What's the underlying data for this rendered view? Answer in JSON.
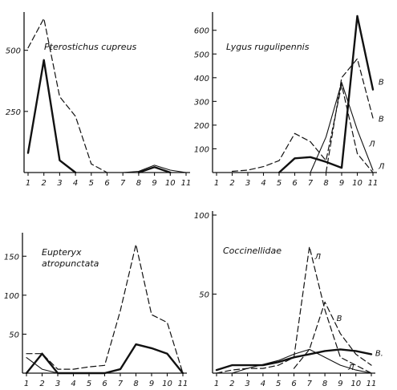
{
  "chart_data": [
    {
      "type": "line",
      "title": "Pterostichus cupreus",
      "title_lines": [
        "Pterostichus cupreus"
      ],
      "x": [
        1,
        2,
        3,
        4,
        5,
        6,
        7,
        8,
        9,
        10,
        11
      ],
      "ylim": [
        0,
        640
      ],
      "yticks": [
        250,
        500
      ],
      "series": [
        {
          "style": "dashed",
          "points": [
            [
              1,
              510
            ],
            [
              2,
              630
            ],
            [
              3,
              310
            ],
            [
              4,
              230
            ],
            [
              5,
              35
            ],
            [
              6,
              0
            ]
          ]
        },
        {
          "style": "solid",
          "points": [
            [
              1,
              80
            ],
            [
              2,
              460
            ],
            [
              3,
              50
            ],
            [
              4,
              0
            ]
          ]
        },
        {
          "style": "solid-thin",
          "points": [
            [
              7,
              0
            ],
            [
              8,
              5
            ],
            [
              9,
              30
            ],
            [
              10,
              10
            ],
            [
              11,
              0
            ]
          ]
        },
        {
          "style": "solid",
          "points": [
            [
              8,
              0
            ],
            [
              9,
              22
            ],
            [
              10,
              0
            ]
          ]
        }
      ],
      "series_labels": []
    },
    {
      "type": "line",
      "title": "Lygus rugulipennis",
      "title_lines": [
        "Lygus rugulipennis"
      ],
      "x": [
        1,
        2,
        3,
        4,
        5,
        6,
        7,
        8,
        9,
        10,
        11
      ],
      "ylim": [
        0,
        660
      ],
      "yticks": [
        100,
        200,
        300,
        400,
        500,
        600
      ],
      "series": [
        {
          "style": "dashed",
          "points": [
            [
              2,
              5
            ],
            [
              3,
              10
            ],
            [
              4,
              25
            ],
            [
              5,
              50
            ],
            [
              6,
              165
            ],
            [
              7,
              130
            ],
            [
              8,
              50
            ],
            [
              9,
              370
            ],
            [
              10,
              80
            ],
            [
              11,
              0
            ]
          ]
        },
        {
          "style": "solid",
          "points": [
            [
              5,
              0
            ],
            [
              6,
              60
            ],
            [
              7,
              65
            ],
            [
              8,
              45
            ],
            [
              9,
              20
            ],
            [
              10,
              660
            ],
            [
              11,
              350
            ]
          ]
        },
        {
          "style": "dashed",
          "points": [
            [
              8,
              0
            ],
            [
              9,
              400
            ],
            [
              10,
              480
            ],
            [
              11,
              230
            ]
          ]
        },
        {
          "style": "solid-thin",
          "points": [
            [
              7,
              0
            ],
            [
              8,
              150
            ],
            [
              9,
              380
            ],
            [
              10,
              180
            ],
            [
              11,
              10
            ]
          ]
        }
      ],
      "series_labels": [
        {
          "text": "В",
          "x": 11.35,
          "y": 370
        },
        {
          "text": "В",
          "x": 11.35,
          "y": 215
        },
        {
          "text": "Л",
          "x": 10.75,
          "y": 110
        },
        {
          "text": "Л",
          "x": 11.35,
          "y": 15
        }
      ]
    },
    {
      "type": "line",
      "title": "Eupteryx atropunctata",
      "title_lines": [
        "Eupteryx",
        "atropunctata"
      ],
      "x": [
        1,
        2,
        3,
        4,
        5,
        6,
        7,
        8,
        9,
        10,
        11
      ],
      "ylim": [
        0,
        175
      ],
      "yticks": [
        50,
        100,
        150
      ],
      "series": [
        {
          "style": "dashed",
          "points": [
            [
              1,
              25
            ],
            [
              2,
              25
            ],
            [
              3,
              5
            ],
            [
              4,
              5
            ],
            [
              5,
              8
            ],
            [
              6,
              10
            ],
            [
              7,
              80
            ],
            [
              8,
              165
            ],
            [
              9,
              75
            ],
            [
              10,
              65
            ],
            [
              11,
              0
            ]
          ]
        },
        {
          "style": "solid",
          "points": [
            [
              1,
              0
            ],
            [
              2,
              25
            ],
            [
              3,
              0
            ],
            [
              4,
              0
            ],
            [
              5,
              0
            ],
            [
              6,
              0
            ],
            [
              7,
              5
            ],
            [
              8,
              37
            ],
            [
              9,
              32
            ],
            [
              10,
              25
            ],
            [
              11,
              0
            ]
          ]
        },
        {
          "style": "solid-thin",
          "points": [
            [
              1,
              20
            ],
            [
              2,
              5
            ],
            [
              3,
              0
            ]
          ]
        }
      ],
      "series_labels": []
    },
    {
      "type": "line",
      "title": "Coccinellidae",
      "title_lines": [
        "Coccinellidae"
      ],
      "x": [
        1,
        2,
        3,
        4,
        5,
        6,
        7,
        8,
        9,
        10,
        11
      ],
      "ylim": [
        0,
        100
      ],
      "yticks": [
        50,
        100
      ],
      "series": [
        {
          "style": "dashed",
          "points": [
            [
              1,
              0
            ],
            [
              2,
              2
            ],
            [
              3,
              3
            ],
            [
              4,
              3
            ],
            [
              5,
              5
            ],
            [
              6,
              10
            ],
            [
              7,
              80
            ],
            [
              8,
              40
            ],
            [
              9,
              10
            ],
            [
              10,
              5
            ],
            [
              11,
              0
            ]
          ]
        },
        {
          "style": "dashed",
          "points": [
            [
              6,
              3
            ],
            [
              7,
              15
            ],
            [
              8,
              45
            ],
            [
              9,
              25
            ],
            [
              10,
              12
            ],
            [
              11,
              5
            ]
          ]
        },
        {
          "style": "solid",
          "points": [
            [
              1,
              2
            ],
            [
              2,
              5
            ],
            [
              3,
              5
            ],
            [
              4,
              5
            ],
            [
              5,
              7
            ],
            [
              6,
              10
            ],
            [
              7,
              12
            ],
            [
              8,
              14
            ],
            [
              9,
              15
            ],
            [
              10,
              14
            ],
            [
              11,
              12
            ]
          ]
        },
        {
          "style": "solid-thin",
          "points": [
            [
              2,
              0
            ],
            [
              3,
              3
            ],
            [
              5,
              8
            ],
            [
              6,
              12
            ],
            [
              7,
              15
            ],
            [
              8,
              10
            ],
            [
              9,
              5
            ],
            [
              10,
              2
            ],
            [
              11,
              0
            ]
          ]
        }
      ],
      "series_labels": [
        {
          "text": "Л",
          "x": 7.35,
          "y": 72
        },
        {
          "text": "В",
          "x": 8.75,
          "y": 33
        },
        {
          "text": "В.",
          "x": 11.25,
          "y": 11
        },
        {
          "text": "Л",
          "x": 9.5,
          "y": 2
        }
      ]
    }
  ]
}
